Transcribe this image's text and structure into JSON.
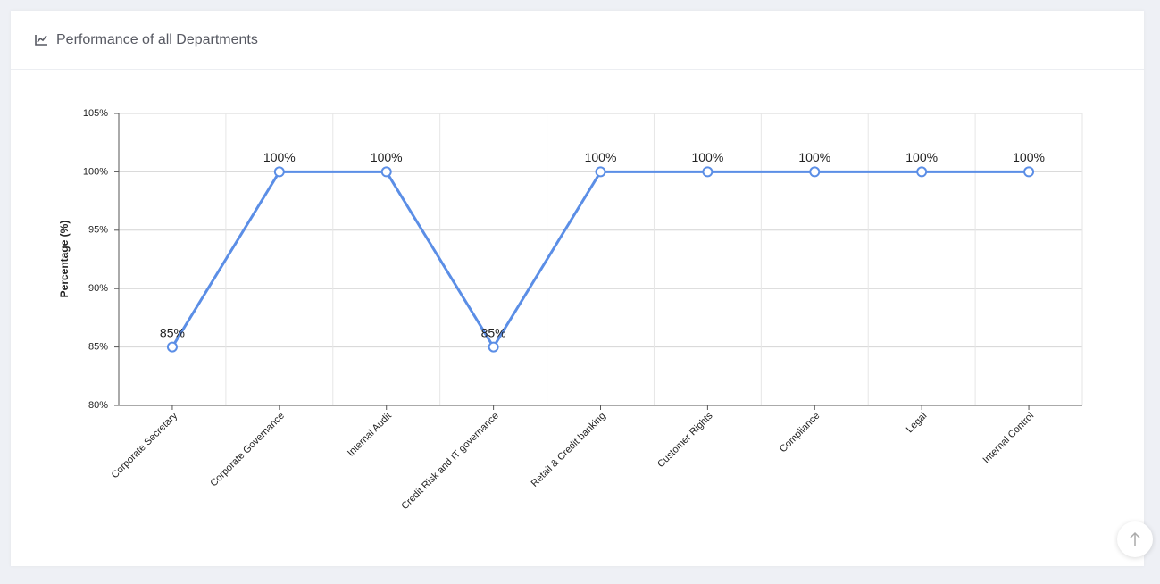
{
  "chart_data": {
    "type": "line",
    "title": "Performance of all Departments",
    "y_label": "Percentage (%)",
    "categories": [
      "Corporate Secretary",
      "Corporate Governance",
      "Internal Audit",
      "Credit Risk and IT governance",
      "Retail & Credit banking",
      "Customer Rights",
      "Compliance",
      "Legal",
      "Internal Control"
    ],
    "values": [
      85,
      100,
      100,
      85,
      100,
      100,
      100,
      100,
      100
    ],
    "value_labels": [
      "85%",
      "100%",
      "100%",
      "85%",
      "100%",
      "100%",
      "100%",
      "100%",
      "100%"
    ],
    "color": "#5b8ee6",
    "ylim": [
      80,
      105
    ],
    "yticks": [
      {
        "value": 80,
        "label": "80%"
      },
      {
        "value": 85,
        "label": "85%"
      },
      {
        "value": 90,
        "label": "90%"
      },
      {
        "value": 95,
        "label": "95%"
      },
      {
        "value": 100,
        "label": "100%"
      },
      {
        "value": 105,
        "label": "105%"
      }
    ],
    "grid": true
  }
}
